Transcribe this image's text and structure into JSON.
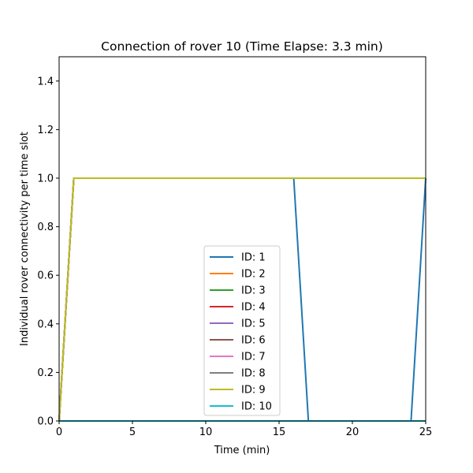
{
  "chart_data": {
    "type": "line",
    "title": "Connection of rover 10 (Time Elapse: 3.3 min)",
    "xlabel": "Time (min)",
    "ylabel": "Individual rover connectivity per time slot",
    "xlim": [
      0,
      25
    ],
    "ylim": [
      0,
      1.5
    ],
    "xticks": [
      0,
      5,
      10,
      15,
      20,
      25
    ],
    "xtick_labels": [
      "0",
      "5",
      "10",
      "15",
      "20",
      "25"
    ],
    "yticks": [
      0.0,
      0.2,
      0.4,
      0.6,
      0.8,
      1.0,
      1.2,
      1.4
    ],
    "ytick_labels": [
      "0.0",
      "0.2",
      "0.4",
      "0.6",
      "0.8",
      "1.0",
      "1.2",
      "1.4"
    ],
    "grid": false,
    "legend_position": "lower-center",
    "series": [
      {
        "name": "ID: 1",
        "color": "#1f77b4",
        "x": [
          0,
          1,
          16,
          17,
          24,
          25
        ],
        "y": [
          0,
          1,
          1,
          0,
          0,
          1
        ]
      },
      {
        "name": "ID: 2",
        "color": "#ff7f0e",
        "x": [
          0,
          1,
          25
        ],
        "y": [
          0,
          1,
          1
        ]
      },
      {
        "name": "ID: 3",
        "color": "#2ca02c",
        "x": [
          0,
          1,
          25
        ],
        "y": [
          0,
          1,
          1
        ]
      },
      {
        "name": "ID: 4",
        "color": "#d62728",
        "x": [
          0,
          1,
          25
        ],
        "y": [
          0,
          1,
          1
        ]
      },
      {
        "name": "ID: 5",
        "color": "#9467bd",
        "x": [
          0,
          1,
          25
        ],
        "y": [
          0,
          1,
          1
        ]
      },
      {
        "name": "ID: 6",
        "color": "#8c564b",
        "x": [
          0,
          1,
          25
        ],
        "y": [
          0,
          1,
          1
        ]
      },
      {
        "name": "ID: 7",
        "color": "#e377c2",
        "x": [
          0,
          1,
          25
        ],
        "y": [
          0,
          1,
          1
        ]
      },
      {
        "name": "ID: 8",
        "color": "#7f7f7f",
        "x": [
          0,
          1,
          25
        ],
        "y": [
          0,
          1,
          1
        ]
      },
      {
        "name": "ID: 9",
        "color": "#bcbd22",
        "x": [
          0,
          1,
          25
        ],
        "y": [
          0,
          1,
          1
        ]
      },
      {
        "name": "ID: 10",
        "color": "#17becf",
        "x": [
          0,
          25
        ],
        "y": [
          0,
          0
        ]
      }
    ]
  }
}
